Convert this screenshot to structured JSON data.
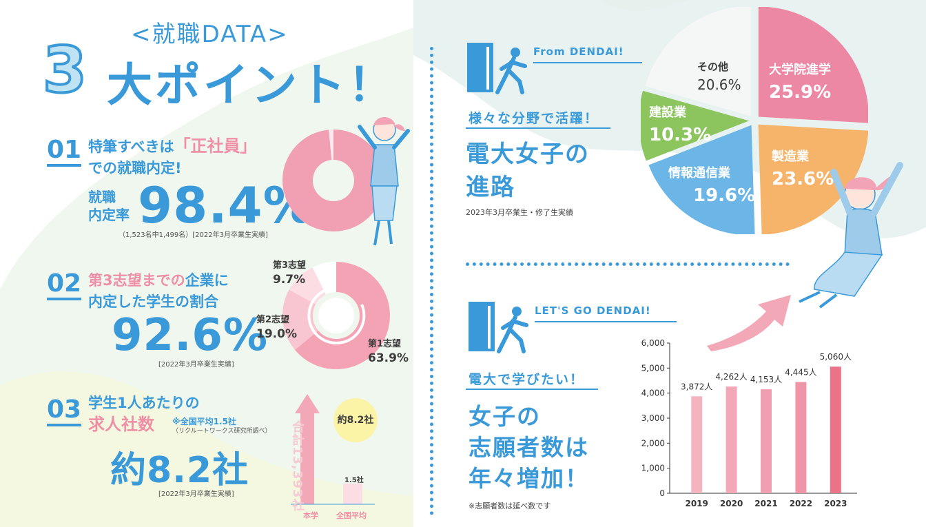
{
  "header": {
    "subtitle": "<就職DATA>",
    "number": "3",
    "title": "大ポイント！"
  },
  "point1": {
    "num": "01",
    "line1_a": "特筆すべきは",
    "line1_b": "「正社員」",
    "line2": "での就職内定!",
    "label1": "就職",
    "label2": "内定率",
    "value": "98.4%",
    "note": "（1,523名中1,499名）[2022年3月卒業生実績]",
    "donut_value": 98.4
  },
  "point2": {
    "num": "02",
    "line1_a": "第3志望までの",
    "line1_b": "企業に",
    "line2": "内定した学生の割合",
    "value": "92.6%",
    "note": "[2022年3月卒業生実績]",
    "segments": [
      {
        "label": "第1志望",
        "value_text": "63.9%",
        "value": 63.9,
        "color": "#f4a3b4"
      },
      {
        "label": "第2志望",
        "value_text": "19.0%",
        "value": 19.0,
        "color": "#f8c6d0"
      },
      {
        "label": "第3志望",
        "value_text": "9.7%",
        "value": 9.7,
        "color": "#fbdde3"
      }
    ]
  },
  "point3": {
    "num": "03",
    "line1": "学生1人あたりの",
    "line2": "求人社数",
    "note_a": "※全国平均1.5社",
    "note_b": "（リクルートワークス研究所調べ）",
    "value": "約8.2社",
    "note": "[2022年3月卒業生実績]",
    "total": "合計13,393社",
    "bubble": "約8.2社",
    "bar_small_label": "1.5社",
    "xlabels": [
      "本学",
      "全国平均"
    ]
  },
  "career": {
    "tag": "From DENDAI!",
    "speech": "様々な分野で活躍！",
    "title1": "電大女子の",
    "title2": "進路",
    "note": "2023年3月卒業生・修了生実績"
  },
  "applicants": {
    "tag": "LET'S GO DENDAI!",
    "speech": "電大で学びたい！",
    "title1": "女子の",
    "title2": "志願者数は",
    "title3": "年々増加！",
    "note": "※志願者数は延べ数です"
  },
  "chart_data": [
    {
      "type": "pie",
      "title": "電大女子の進路",
      "labels": [
        "大学院進学",
        "製造業",
        "情報通信業",
        "建設業",
        "その他"
      ],
      "values": [
        25.9,
        23.6,
        19.6,
        10.3,
        20.6
      ],
      "value_text": [
        "25.9%",
        "23.6%",
        "19.6%",
        "10.3%",
        "20.6%"
      ],
      "colors": [
        "#ec88a4",
        "#f5b46a",
        "#6bb6e6",
        "#8cc45e",
        "#f4f7f5"
      ]
    },
    {
      "type": "bar",
      "title": "女子の志願者数",
      "categories": [
        "2019",
        "2020",
        "2021",
        "2022",
        "2023"
      ],
      "values": [
        3872,
        4262,
        4153,
        4445,
        5060
      ],
      "value_labels": [
        "3,872人",
        "4,262人",
        "4,153人",
        "4,445人",
        "5,060人"
      ],
      "ylim": [
        0,
        6000
      ],
      "yticks": [
        "0",
        "1,000",
        "2,000",
        "3,000",
        "4,000",
        "5,000",
        "6,000"
      ],
      "colors": [
        "#f3b3bf",
        "#f2a8b7",
        "#f09fb0",
        "#ee95a7",
        "#ea7388"
      ]
    }
  ]
}
